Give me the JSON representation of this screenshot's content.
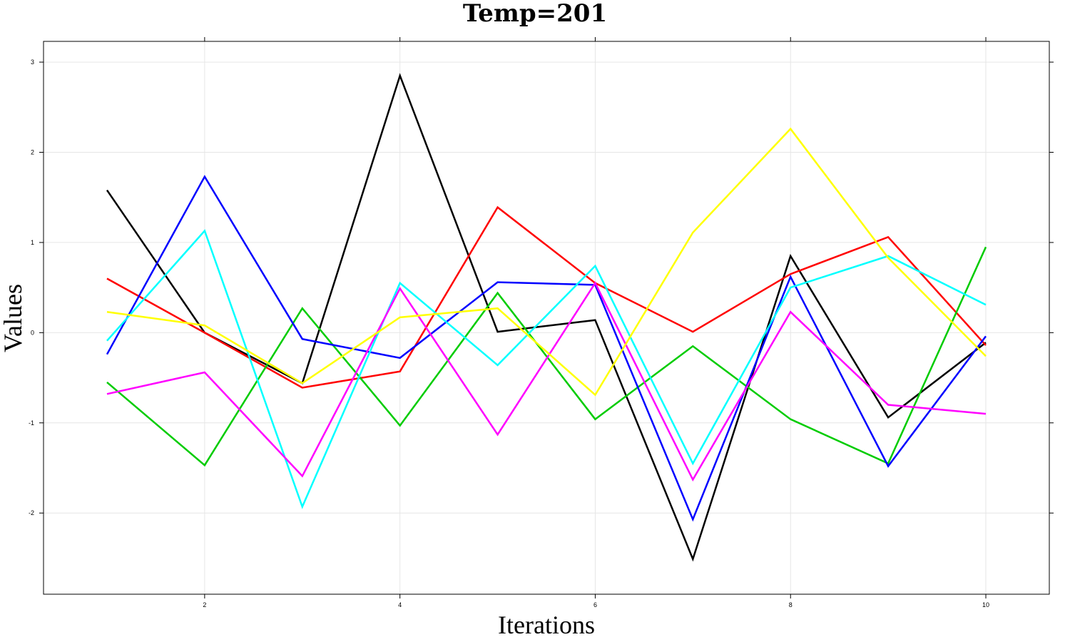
{
  "chart_data": {
    "type": "line",
    "title": "Temp=201",
    "xlabel": "Iterations",
    "ylabel": "Values",
    "x": [
      1,
      2,
      3,
      4,
      5,
      6,
      7,
      8,
      9,
      10
    ],
    "xlim": [
      0.35,
      10.65
    ],
    "ylim": [
      -2.9,
      3.23
    ],
    "xticks": [
      2,
      4,
      6,
      8,
      10
    ],
    "yticks": [
      -2,
      -1,
      0,
      1,
      2,
      3
    ],
    "grid": true,
    "series": [
      {
        "color": "#000000",
        "values": [
          1.58,
          0.0,
          -0.56,
          2.85,
          0.01,
          0.14,
          -2.51,
          0.85,
          -0.94,
          -0.11
        ]
      },
      {
        "color": "#ff0000",
        "values": [
          0.6,
          0.0,
          -0.61,
          -0.43,
          1.39,
          0.55,
          0.01,
          0.65,
          1.06,
          -0.14
        ]
      },
      {
        "color": "#00cc00",
        "values": [
          -0.55,
          -1.47,
          0.27,
          -1.03,
          0.44,
          -0.96,
          -0.15,
          -0.96,
          -1.45,
          0.95
        ]
      },
      {
        "color": "#0000ff",
        "values": [
          -0.24,
          1.73,
          -0.07,
          -0.28,
          0.56,
          0.53,
          -2.07,
          0.62,
          -1.48,
          -0.04
        ]
      },
      {
        "color": "#00ffff",
        "values": [
          -0.09,
          1.13,
          -1.93,
          0.55,
          -0.36,
          0.74,
          -1.45,
          0.5,
          0.85,
          0.31
        ]
      },
      {
        "color": "#ff00ff",
        "values": [
          -0.68,
          -0.44,
          -1.59,
          0.49,
          -1.13,
          0.55,
          -1.63,
          0.23,
          -0.8,
          -0.9
        ]
      },
      {
        "color": "#ffff00",
        "values": [
          0.23,
          0.08,
          -0.56,
          0.17,
          0.27,
          -0.69,
          1.11,
          2.26,
          0.83,
          -0.26
        ]
      }
    ]
  }
}
